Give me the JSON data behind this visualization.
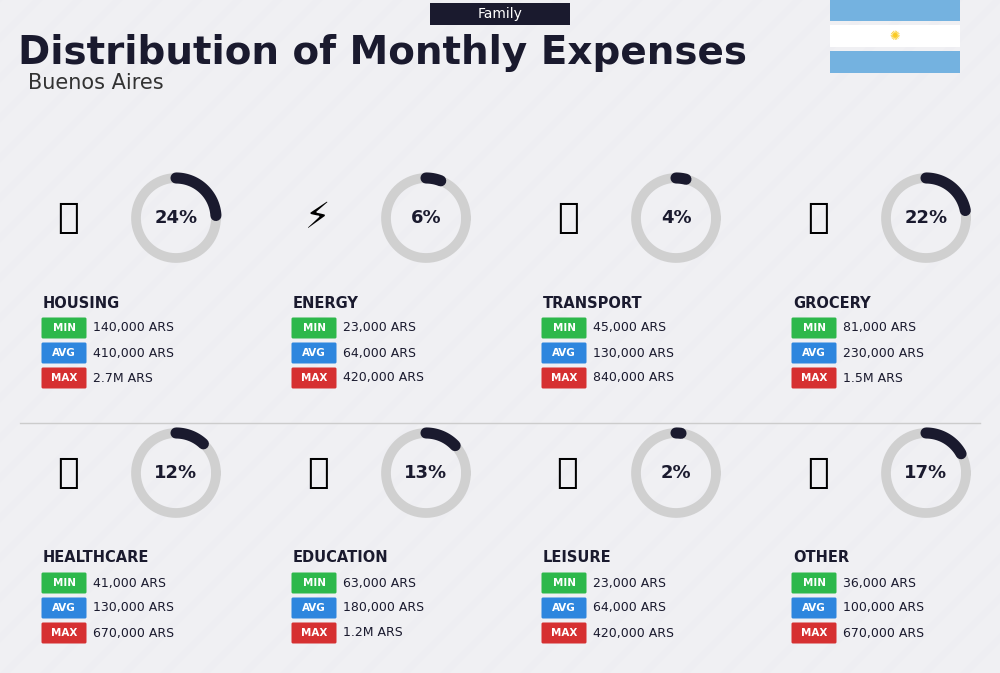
{
  "title": "Distribution of Monthly Expenses",
  "subtitle": "Buenos Aires",
  "tag": "Family",
  "bg_color": "#f2f2f5",
  "categories": [
    {
      "name": "HOUSING",
      "pct": 24,
      "min": "140,000 ARS",
      "avg": "410,000 ARS",
      "max": "2.7M ARS",
      "row": 0,
      "col": 0
    },
    {
      "name": "ENERGY",
      "pct": 6,
      "min": "23,000 ARS",
      "avg": "64,000 ARS",
      "max": "420,000 ARS",
      "row": 0,
      "col": 1
    },
    {
      "name": "TRANSPORT",
      "pct": 4,
      "min": "45,000 ARS",
      "avg": "130,000 ARS",
      "max": "840,000 ARS",
      "row": 0,
      "col": 2
    },
    {
      "name": "GROCERY",
      "pct": 22,
      "min": "81,000 ARS",
      "avg": "230,000 ARS",
      "max": "1.5M ARS",
      "row": 0,
      "col": 3
    },
    {
      "name": "HEALTHCARE",
      "pct": 12,
      "min": "41,000 ARS",
      "avg": "130,000 ARS",
      "max": "670,000 ARS",
      "row": 1,
      "col": 0
    },
    {
      "name": "EDUCATION",
      "pct": 13,
      "min": "63,000 ARS",
      "avg": "180,000 ARS",
      "max": "1.2M ARS",
      "row": 1,
      "col": 1
    },
    {
      "name": "LEISURE",
      "pct": 2,
      "min": "23,000 ARS",
      "avg": "64,000 ARS",
      "max": "420,000 ARS",
      "row": 1,
      "col": 2
    },
    {
      "name": "OTHER",
      "pct": 17,
      "min": "36,000 ARS",
      "avg": "100,000 ARS",
      "max": "670,000 ARS",
      "row": 1,
      "col": 3
    }
  ],
  "color_min": "#2db84b",
  "color_avg": "#2e86de",
  "color_max": "#d63031",
  "arc_fg": "#1a1a2e",
  "arc_bg": "#d0d0d0",
  "flag_blue": "#74b2e0",
  "flag_sun": "#f9ca24"
}
